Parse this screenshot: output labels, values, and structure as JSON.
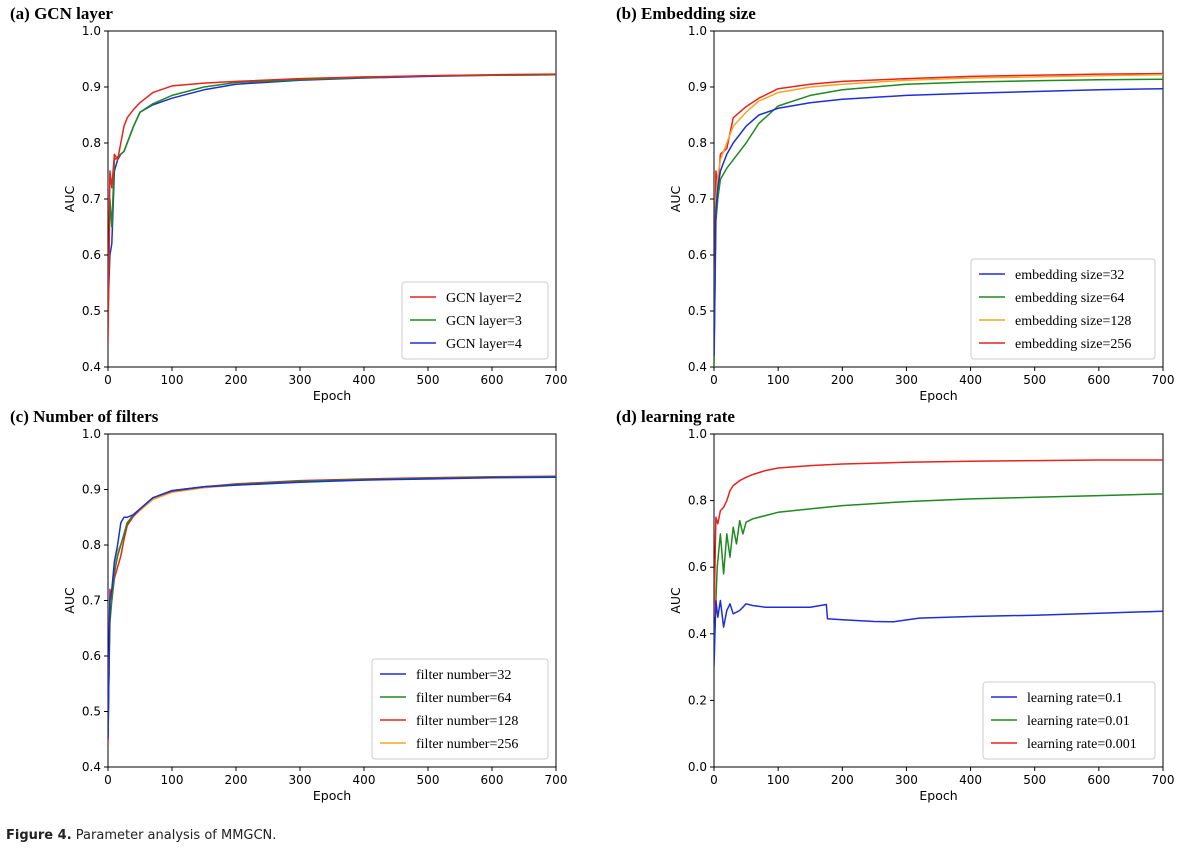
{
  "caption": {
    "label": "Figure 4.",
    "text": "Parameter analysis of MMGCN."
  },
  "chart_data": [
    {
      "type": "line",
      "title": "(a) GCN layer",
      "xlabel": "Epoch",
      "ylabel": "AUC",
      "xlim": [
        0,
        700
      ],
      "ylim": [
        0.4,
        1.0
      ],
      "xticks": [
        "0",
        "100",
        "200",
        "300",
        "400",
        "500",
        "600",
        "700"
      ],
      "yticks": [
        "0.4",
        "0.5",
        "0.6",
        "0.7",
        "0.8",
        "0.9",
        "1.0"
      ],
      "legend_position": "lower-right",
      "series": [
        {
          "name": "GCN layer=2",
          "color": "#e8231f",
          "x": [
            0,
            3,
            6,
            10,
            15,
            20,
            25,
            30,
            40,
            50,
            70,
            100,
            150,
            200,
            300,
            400,
            500,
            600,
            700
          ],
          "y": [
            0.44,
            0.75,
            0.72,
            0.78,
            0.77,
            0.8,
            0.83,
            0.845,
            0.86,
            0.872,
            0.89,
            0.902,
            0.907,
            0.91,
            0.915,
            0.918,
            0.92,
            0.922,
            0.923
          ]
        },
        {
          "name": "GCN layer=3",
          "color": "#1f8a1f",
          "x": [
            0,
            3,
            6,
            10,
            15,
            20,
            25,
            30,
            40,
            50,
            70,
            100,
            150,
            200,
            300,
            400,
            500,
            600,
            700
          ],
          "y": [
            0.47,
            0.7,
            0.65,
            0.77,
            0.775,
            0.78,
            0.785,
            0.8,
            0.83,
            0.855,
            0.87,
            0.885,
            0.9,
            0.908,
            0.913,
            0.917,
            0.92,
            0.921,
            0.922
          ]
        },
        {
          "name": "GCN layer=4",
          "color": "#1f2fd6",
          "x": [
            0,
            3,
            6,
            10,
            15,
            20,
            25,
            30,
            40,
            50,
            70,
            100,
            150,
            200,
            300,
            400,
            500,
            600,
            700
          ],
          "y": [
            0.5,
            0.6,
            0.62,
            0.75,
            0.77,
            0.78,
            0.785,
            0.8,
            0.83,
            0.855,
            0.868,
            0.88,
            0.895,
            0.905,
            0.912,
            0.916,
            0.919,
            0.921,
            0.922
          ]
        }
      ]
    },
    {
      "type": "line",
      "title": "(b) Embedding size",
      "xlabel": "Epoch",
      "ylabel": "AUC",
      "xlim": [
        0,
        700
      ],
      "ylim": [
        0.4,
        1.0
      ],
      "xticks": [
        "0",
        "100",
        "200",
        "300",
        "400",
        "500",
        "600",
        "700"
      ],
      "yticks": [
        "0.4",
        "0.5",
        "0.6",
        "0.7",
        "0.8",
        "0.9",
        "1.0"
      ],
      "legend_position": "lower-right",
      "series": [
        {
          "name": "embedding size=32",
          "color": "#1f2fd6",
          "x": [
            0,
            3,
            6,
            10,
            20,
            30,
            50,
            70,
            100,
            150,
            200,
            300,
            400,
            500,
            600,
            700
          ],
          "y": [
            0.42,
            0.68,
            0.72,
            0.75,
            0.78,
            0.8,
            0.83,
            0.85,
            0.862,
            0.872,
            0.878,
            0.885,
            0.889,
            0.892,
            0.895,
            0.897
          ]
        },
        {
          "name": "embedding size=64",
          "color": "#1f8a1f",
          "x": [
            0,
            3,
            6,
            10,
            20,
            30,
            50,
            70,
            100,
            150,
            200,
            300,
            400,
            500,
            600,
            700
          ],
          "y": [
            0.4,
            0.66,
            0.7,
            0.735,
            0.755,
            0.77,
            0.8,
            0.835,
            0.866,
            0.885,
            0.895,
            0.905,
            0.909,
            0.911,
            0.913,
            0.914
          ]
        },
        {
          "name": "embedding size=128",
          "color": "#f5a623",
          "x": [
            0,
            3,
            6,
            10,
            20,
            30,
            50,
            70,
            100,
            150,
            200,
            300,
            400,
            500,
            600,
            700
          ],
          "y": [
            0.4,
            0.7,
            0.74,
            0.77,
            0.8,
            0.83,
            0.855,
            0.875,
            0.89,
            0.9,
            0.905,
            0.912,
            0.916,
            0.918,
            0.92,
            0.922
          ]
        },
        {
          "name": "embedding size=256",
          "color": "#e8231f",
          "x": [
            0,
            3,
            6,
            10,
            20,
            30,
            50,
            70,
            100,
            150,
            200,
            300,
            400,
            500,
            600,
            700
          ],
          "y": [
            0.44,
            0.75,
            0.72,
            0.78,
            0.79,
            0.845,
            0.865,
            0.88,
            0.897,
            0.905,
            0.91,
            0.915,
            0.919,
            0.921,
            0.923,
            0.924
          ]
        }
      ]
    },
    {
      "type": "line",
      "title": "(c) Number of filters",
      "xlabel": "Epoch",
      "ylabel": "AUC",
      "xlim": [
        0,
        700
      ],
      "ylim": [
        0.4,
        1.0
      ],
      "xticks": [
        "0",
        "100",
        "200",
        "300",
        "400",
        "500",
        "600",
        "700"
      ],
      "yticks": [
        "0.4",
        "0.5",
        "0.6",
        "0.7",
        "0.8",
        "0.9",
        "1.0"
      ],
      "legend_position": "lower-right",
      "series": [
        {
          "name": "filter number=32",
          "color": "#1f2fd6",
          "x": [
            0,
            3,
            6,
            10,
            15,
            20,
            25,
            30,
            40,
            50,
            70,
            100,
            150,
            200,
            300,
            400,
            500,
            600,
            700
          ],
          "y": [
            0.45,
            0.7,
            0.72,
            0.77,
            0.8,
            0.84,
            0.85,
            0.85,
            0.855,
            0.865,
            0.885,
            0.898,
            0.905,
            0.908,
            0.913,
            0.917,
            0.919,
            0.921,
            0.922
          ]
        },
        {
          "name": "filter number=64",
          "color": "#1f8a1f",
          "x": [
            0,
            3,
            6,
            10,
            15,
            20,
            25,
            30,
            40,
            50,
            70,
            100,
            150,
            200,
            300,
            400,
            500,
            600,
            700
          ],
          "y": [
            0.46,
            0.66,
            0.7,
            0.75,
            0.78,
            0.8,
            0.82,
            0.84,
            0.855,
            0.865,
            0.885,
            0.898,
            0.905,
            0.909,
            0.915,
            0.918,
            0.92,
            0.922,
            0.923
          ]
        },
        {
          "name": "filter number=128",
          "color": "#e8231f",
          "x": [
            0,
            3,
            6,
            10,
            15,
            20,
            25,
            30,
            40,
            50,
            70,
            100,
            150,
            200,
            300,
            400,
            500,
            600,
            700
          ],
          "y": [
            0.44,
            0.72,
            0.7,
            0.74,
            0.76,
            0.78,
            0.81,
            0.835,
            0.852,
            0.865,
            0.885,
            0.897,
            0.905,
            0.91,
            0.916,
            0.919,
            0.921,
            0.923,
            0.924
          ]
        },
        {
          "name": "filter number=256",
          "color": "#f5a623",
          "x": [
            0,
            3,
            6,
            10,
            15,
            20,
            25,
            30,
            40,
            50,
            70,
            100,
            150,
            200,
            300,
            400,
            500,
            600,
            700
          ],
          "y": [
            0.47,
            0.68,
            0.71,
            0.76,
            0.79,
            0.8,
            0.82,
            0.84,
            0.852,
            0.862,
            0.882,
            0.895,
            0.903,
            0.908,
            0.914,
            0.918,
            0.92,
            0.922,
            0.923
          ]
        }
      ]
    },
    {
      "type": "line",
      "title": "(d) learning rate",
      "xlabel": "Epoch",
      "ylabel": "AUC",
      "xlim": [
        0,
        700
      ],
      "ylim": [
        0.0,
        1.0
      ],
      "xticks": [
        "0",
        "100",
        "200",
        "300",
        "400",
        "500",
        "600",
        "700"
      ],
      "yticks": [
        "0.0",
        "0.2",
        "0.4",
        "0.6",
        "0.8",
        "1.0"
      ],
      "legend_position": "lower-right",
      "series": [
        {
          "name": "learning rate=0.1",
          "color": "#1f2fd6",
          "x": [
            0,
            3,
            6,
            10,
            15,
            20,
            25,
            30,
            40,
            50,
            60,
            80,
            100,
            150,
            175,
            177,
            200,
            250,
            280,
            320,
            400,
            500,
            600,
            700
          ],
          "y": [
            0.3,
            0.5,
            0.45,
            0.5,
            0.42,
            0.47,
            0.49,
            0.46,
            0.47,
            0.49,
            0.485,
            0.48,
            0.48,
            0.48,
            0.488,
            0.445,
            0.442,
            0.437,
            0.436,
            0.447,
            0.452,
            0.456,
            0.462,
            0.468
          ]
        },
        {
          "name": "learning rate=0.01",
          "color": "#1f8a1f",
          "x": [
            0,
            5,
            10,
            15,
            20,
            25,
            30,
            35,
            40,
            45,
            50,
            60,
            80,
            100,
            150,
            200,
            300,
            400,
            500,
            600,
            700
          ],
          "y": [
            0.35,
            0.6,
            0.7,
            0.58,
            0.7,
            0.63,
            0.72,
            0.67,
            0.74,
            0.7,
            0.735,
            0.745,
            0.755,
            0.765,
            0.775,
            0.785,
            0.797,
            0.805,
            0.81,
            0.815,
            0.82
          ]
        },
        {
          "name": "learning rate=0.001",
          "color": "#e8231f",
          "x": [
            0,
            3,
            6,
            10,
            15,
            20,
            25,
            30,
            40,
            50,
            60,
            80,
            100,
            150,
            200,
            300,
            400,
            500,
            600,
            700
          ],
          "y": [
            0.45,
            0.75,
            0.73,
            0.77,
            0.78,
            0.8,
            0.83,
            0.845,
            0.86,
            0.87,
            0.878,
            0.89,
            0.898,
            0.905,
            0.91,
            0.915,
            0.918,
            0.92,
            0.922,
            0.922
          ]
        }
      ]
    }
  ]
}
